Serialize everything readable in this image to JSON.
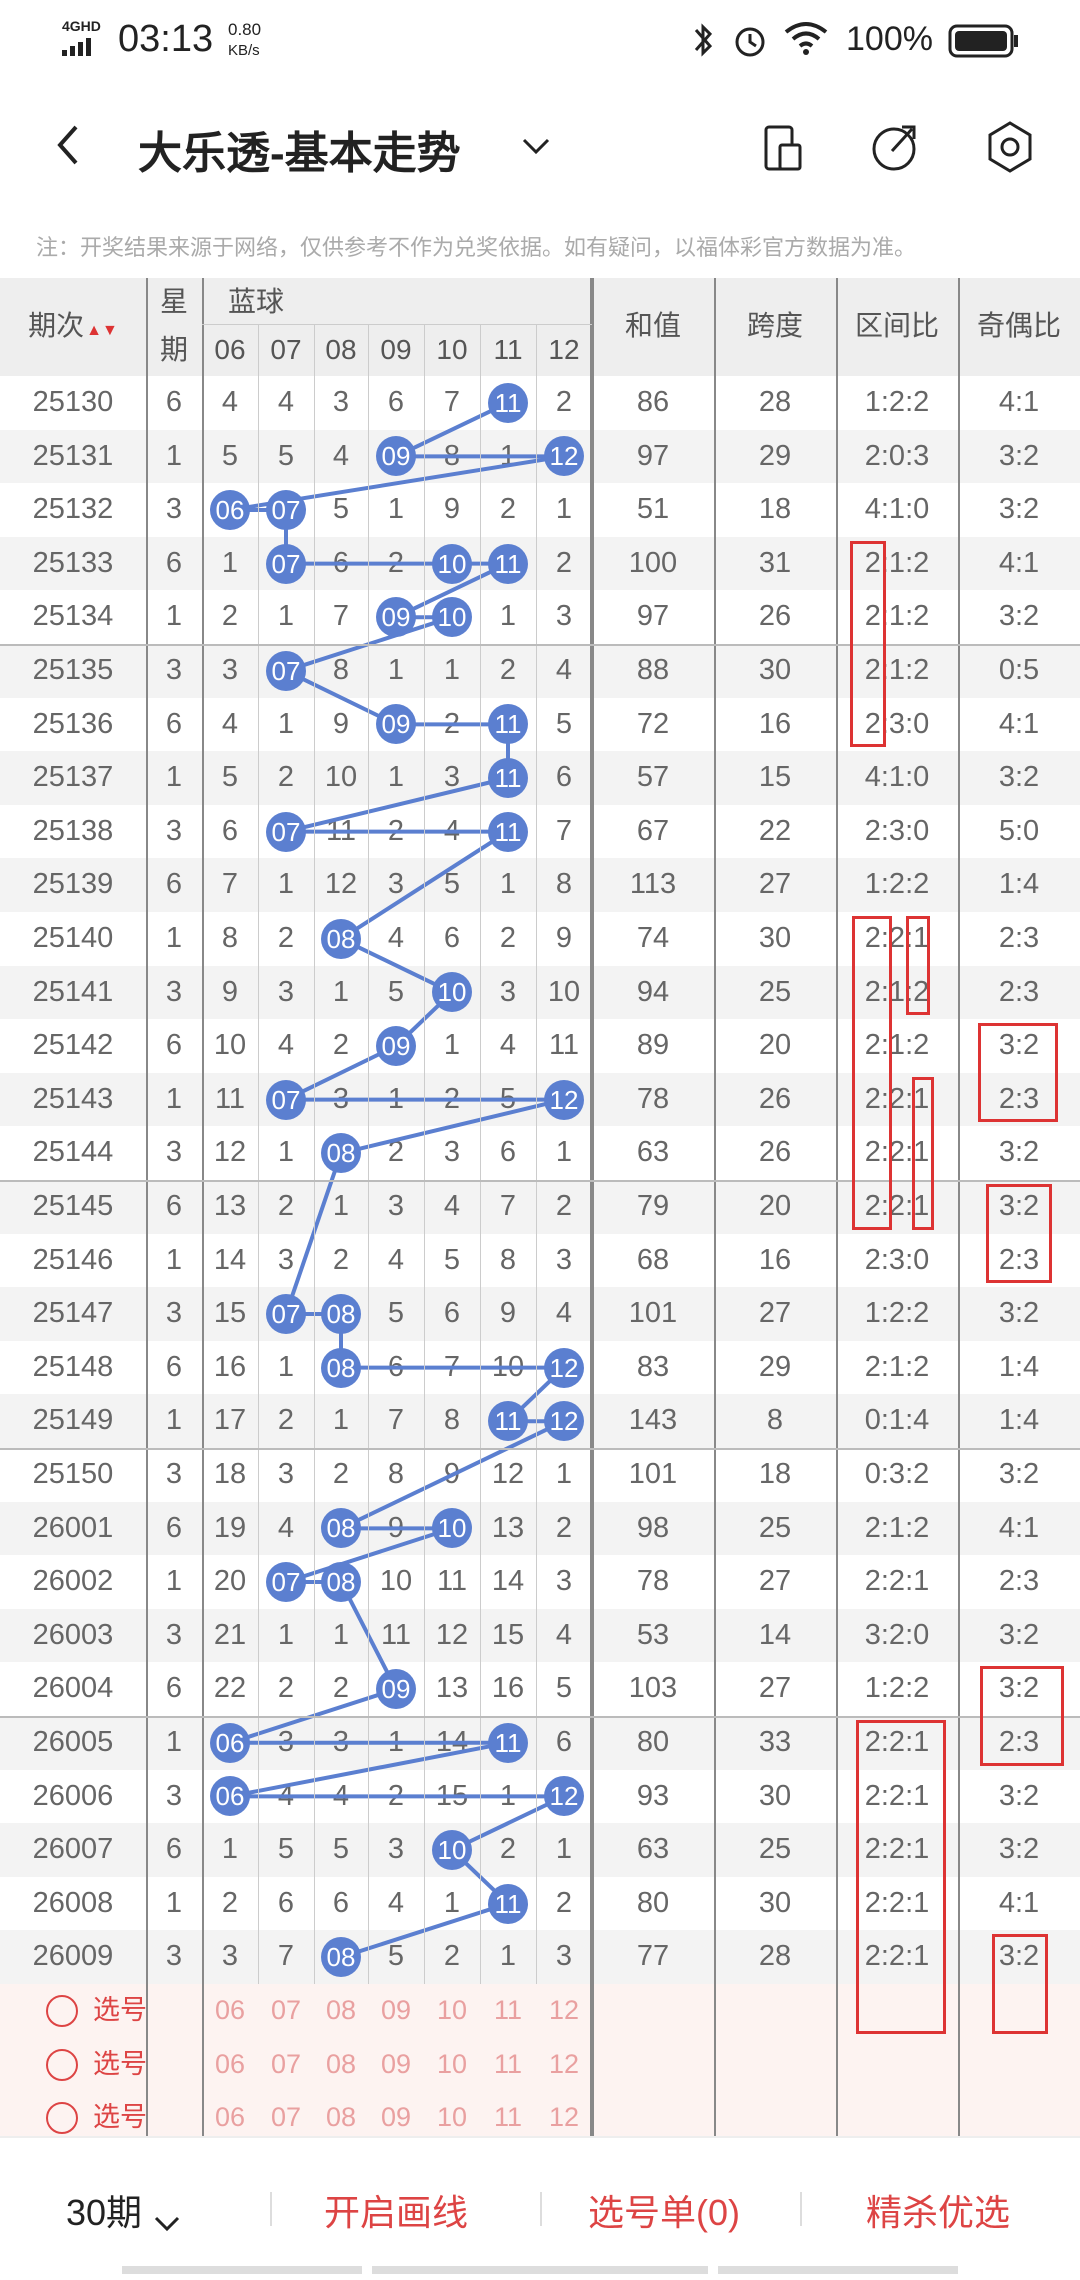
{
  "status": {
    "network": "4GHD",
    "time": "03:13",
    "speed": "0.80",
    "speed_unit": "KB/s",
    "battery": "100%"
  },
  "header": {
    "title": "大乐透-基本走势"
  },
  "note": "注：开奖结果来源于网络，仅供参考不作为兑奖依据。如有疑问，以福体彩官方数据为准。",
  "table": {
    "headers": {
      "issue": "期次",
      "weekday_1": "星",
      "weekday_2": "期",
      "blue": "蓝球",
      "sum": "和值",
      "span": "跨度",
      "zone": "区间比",
      "odd": "奇偶比"
    },
    "blue_cols": [
      "06",
      "07",
      "08",
      "09",
      "10",
      "11",
      "12"
    ],
    "rows": [
      {
        "issue": "25130",
        "wd": "6",
        "vals": [
          "4",
          "4",
          "3",
          "6",
          "7",
          "11",
          "2"
        ],
        "sum": "86",
        "span": "28",
        "zone": "1:2:2",
        "odd": "4:1"
      },
      {
        "issue": "25131",
        "wd": "1",
        "vals": [
          "5",
          "5",
          "4",
          "09",
          "8",
          "1",
          "12"
        ],
        "sum": "97",
        "span": "29",
        "zone": "2:0:3",
        "odd": "3:2"
      },
      {
        "issue": "25132",
        "wd": "3",
        "vals": [
          "06",
          "07",
          "5",
          "1",
          "9",
          "2",
          "1"
        ],
        "sum": "51",
        "span": "18",
        "zone": "4:1:0",
        "odd": "3:2"
      },
      {
        "issue": "25133",
        "wd": "6",
        "vals": [
          "1",
          "07",
          "6",
          "2",
          "10",
          "11",
          "2"
        ],
        "sum": "100",
        "span": "31",
        "zone": "2:1:2",
        "odd": "4:1"
      },
      {
        "issue": "25134",
        "wd": "1",
        "vals": [
          "2",
          "1",
          "7",
          "09",
          "10",
          "1",
          "3"
        ],
        "sum": "97",
        "span": "26",
        "zone": "2:1:2",
        "odd": "3:2"
      },
      {
        "issue": "25135",
        "wd": "3",
        "vals": [
          "3",
          "07",
          "8",
          "1",
          "1",
          "2",
          "4"
        ],
        "sum": "88",
        "span": "30",
        "zone": "2:1:2",
        "odd": "0:5"
      },
      {
        "issue": "25136",
        "wd": "6",
        "vals": [
          "4",
          "1",
          "9",
          "09",
          "2",
          "11",
          "5"
        ],
        "sum": "72",
        "span": "16",
        "zone": "2:3:0",
        "odd": "4:1"
      },
      {
        "issue": "25137",
        "wd": "1",
        "vals": [
          "5",
          "2",
          "10",
          "1",
          "3",
          "11",
          "6"
        ],
        "sum": "57",
        "span": "15",
        "zone": "4:1:0",
        "odd": "3:2"
      },
      {
        "issue": "25138",
        "wd": "3",
        "vals": [
          "6",
          "07",
          "11",
          "2",
          "4",
          "11",
          "7"
        ],
        "sum": "67",
        "span": "22",
        "zone": "2:3:0",
        "odd": "5:0"
      },
      {
        "issue": "25139",
        "wd": "6",
        "vals": [
          "7",
          "1",
          "12",
          "3",
          "5",
          "1",
          "8"
        ],
        "sum": "113",
        "span": "27",
        "zone": "1:2:2",
        "odd": "1:4"
      },
      {
        "issue": "25140",
        "wd": "1",
        "vals": [
          "8",
          "2",
          "08",
          "4",
          "6",
          "2",
          "9"
        ],
        "sum": "74",
        "span": "30",
        "zone": "2:2:1",
        "odd": "2:3"
      },
      {
        "issue": "25141",
        "wd": "3",
        "vals": [
          "9",
          "3",
          "1",
          "5",
          "10",
          "3",
          "10"
        ],
        "sum": "94",
        "span": "25",
        "zone": "2:1:2",
        "odd": "2:3"
      },
      {
        "issue": "25142",
        "wd": "6",
        "vals": [
          "10",
          "4",
          "2",
          "09",
          "1",
          "4",
          "11"
        ],
        "sum": "89",
        "span": "20",
        "zone": "2:1:2",
        "odd": "3:2"
      },
      {
        "issue": "25143",
        "wd": "1",
        "vals": [
          "11",
          "07",
          "3",
          "1",
          "2",
          "5",
          "12"
        ],
        "sum": "78",
        "span": "26",
        "zone": "2:2:1",
        "odd": "2:3"
      },
      {
        "issue": "25144",
        "wd": "3",
        "vals": [
          "12",
          "1",
          "08",
          "2",
          "3",
          "6",
          "1"
        ],
        "sum": "63",
        "span": "26",
        "zone": "2:2:1",
        "odd": "3:2"
      },
      {
        "issue": "25145",
        "wd": "6",
        "vals": [
          "13",
          "2",
          "1",
          "3",
          "4",
          "7",
          "2"
        ],
        "sum": "79",
        "span": "20",
        "zone": "2:2:1",
        "odd": "3:2"
      },
      {
        "issue": "25146",
        "wd": "1",
        "vals": [
          "14",
          "3",
          "2",
          "4",
          "5",
          "8",
          "3"
        ],
        "sum": "68",
        "span": "16",
        "zone": "2:3:0",
        "odd": "2:3"
      },
      {
        "issue": "25147",
        "wd": "3",
        "vals": [
          "15",
          "07",
          "08",
          "5",
          "6",
          "9",
          "4"
        ],
        "sum": "101",
        "span": "27",
        "zone": "1:2:2",
        "odd": "3:2"
      },
      {
        "issue": "25148",
        "wd": "6",
        "vals": [
          "16",
          "1",
          "08",
          "6",
          "7",
          "10",
          "12"
        ],
        "sum": "83",
        "span": "29",
        "zone": "2:1:2",
        "odd": "1:4"
      },
      {
        "issue": "25149",
        "wd": "1",
        "vals": [
          "17",
          "2",
          "1",
          "7",
          "8",
          "11",
          "12"
        ],
        "sum": "143",
        "span": "8",
        "zone": "0:1:4",
        "odd": "1:4"
      },
      {
        "issue": "25150",
        "wd": "3",
        "vals": [
          "18",
          "3",
          "2",
          "8",
          "9",
          "12",
          "1"
        ],
        "sum": "101",
        "span": "18",
        "zone": "0:3:2",
        "odd": "3:2"
      },
      {
        "issue": "26001",
        "wd": "6",
        "vals": [
          "19",
          "4",
          "08",
          "9",
          "10",
          "13",
          "2"
        ],
        "sum": "98",
        "span": "25",
        "zone": "2:1:2",
        "odd": "4:1"
      },
      {
        "issue": "26002",
        "wd": "1",
        "vals": [
          "20",
          "07",
          "08",
          "10",
          "11",
          "14",
          "3"
        ],
        "sum": "78",
        "span": "27",
        "zone": "2:2:1",
        "odd": "2:3"
      },
      {
        "issue": "26003",
        "wd": "3",
        "vals": [
          "21",
          "1",
          "1",
          "11",
          "12",
          "15",
          "4"
        ],
        "sum": "53",
        "span": "14",
        "zone": "3:2:0",
        "odd": "3:2"
      },
      {
        "issue": "26004",
        "wd": "6",
        "vals": [
          "22",
          "2",
          "2",
          "09",
          "13",
          "16",
          "5"
        ],
        "sum": "103",
        "span": "27",
        "zone": "1:2:2",
        "odd": "3:2"
      },
      {
        "issue": "26005",
        "wd": "1",
        "vals": [
          "06",
          "3",
          "3",
          "1",
          "14",
          "11",
          "6"
        ],
        "sum": "80",
        "span": "33",
        "zone": "2:2:1",
        "odd": "2:3"
      },
      {
        "issue": "26006",
        "wd": "3",
        "vals": [
          "06",
          "4",
          "4",
          "2",
          "15",
          "1",
          "12"
        ],
        "sum": "93",
        "span": "30",
        "zone": "2:2:1",
        "odd": "3:2"
      },
      {
        "issue": "26007",
        "wd": "6",
        "vals": [
          "1",
          "5",
          "5",
          "3",
          "10",
          "2",
          "1"
        ],
        "sum": "63",
        "span": "25",
        "zone": "2:2:1",
        "odd": "3:2"
      },
      {
        "issue": "26008",
        "wd": "1",
        "vals": [
          "2",
          "6",
          "6",
          "4",
          "1",
          "11",
          "2"
        ],
        "sum": "80",
        "span": "30",
        "zone": "2:2:1",
        "odd": "4:1"
      },
      {
        "issue": "26009",
        "wd": "3",
        "vals": [
          "3",
          "7",
          "08",
          "5",
          "2",
          "1",
          "3"
        ],
        "sum": "77",
        "span": "28",
        "zone": "2:2:1",
        "odd": "3:2"
      }
    ],
    "pick_label": "选号",
    "pick_rows": 3
  },
  "bottom": {
    "period": "30期",
    "draw_line": "开启画线",
    "pick_list": "选号单(0)",
    "premium": "精杀优选"
  },
  "colors": {
    "ball": "#5b7fd0",
    "accent_red": "#d44"
  }
}
